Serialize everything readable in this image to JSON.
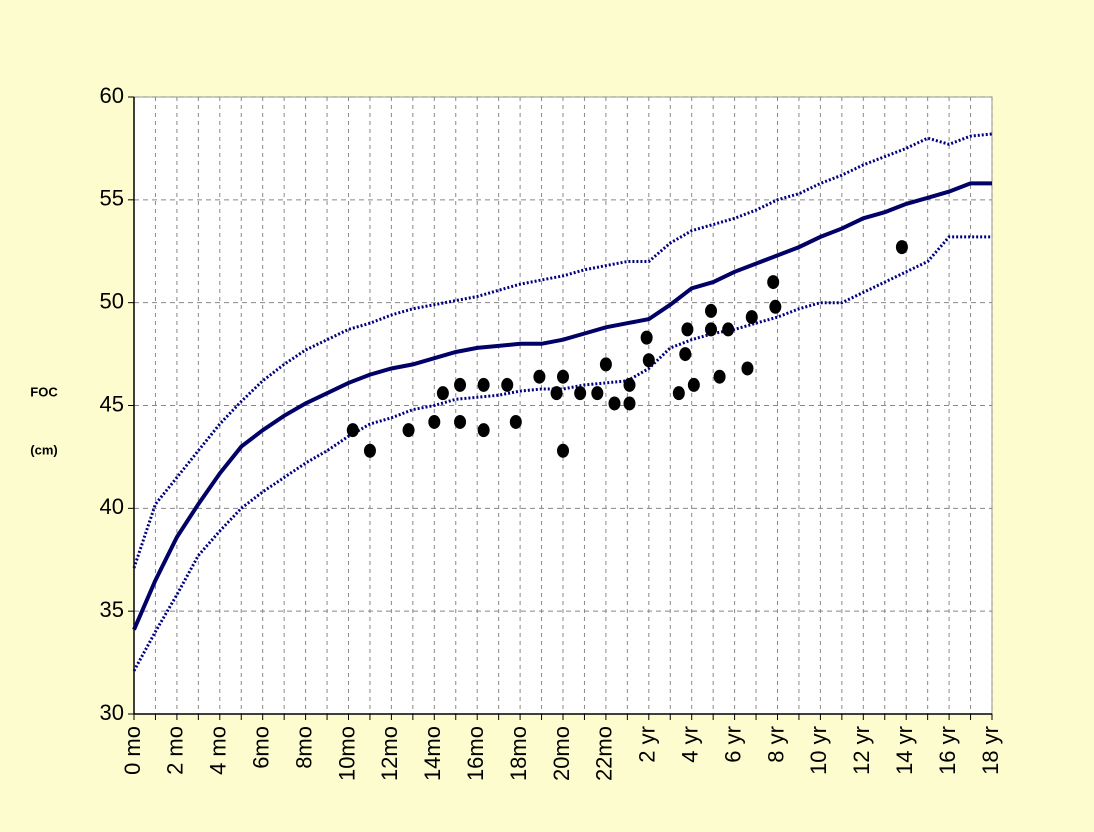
{
  "chart_data": {
    "type": "line",
    "y_label_lines": [
      "FOC",
      "(cm)"
    ],
    "xlim": [
      0,
      40
    ],
    "xticks": [
      {
        "value": 0,
        "label": "0 mo"
      },
      {
        "value": 2,
        "label": "2 mo"
      },
      {
        "value": 4,
        "label": "4 mo"
      },
      {
        "value": 6,
        "label": "6mo"
      },
      {
        "value": 8,
        "label": "8mo"
      },
      {
        "value": 10,
        "label": "10mo"
      },
      {
        "value": 12,
        "label": "12mo"
      },
      {
        "value": 14,
        "label": "14mo"
      },
      {
        "value": 16,
        "label": "16mo"
      },
      {
        "value": 18,
        "label": "18mo"
      },
      {
        "value": 20,
        "label": "20mo"
      },
      {
        "value": 22,
        "label": "22mo"
      },
      {
        "value": 24,
        "label": "2 yr"
      },
      {
        "value": 26,
        "label": "4 yr"
      },
      {
        "value": 28,
        "label": "6 yr"
      },
      {
        "value": 30,
        "label": "8 yr"
      },
      {
        "value": 32,
        "label": "10 yr"
      },
      {
        "value": 34,
        "label": "12 yr"
      },
      {
        "value": 36,
        "label": "14 yr"
      },
      {
        "value": 38,
        "label": "16 yr"
      },
      {
        "value": 40,
        "label": "18 yr"
      }
    ],
    "xminorticks": [
      1,
      3,
      5,
      7,
      9,
      11,
      13,
      15,
      17,
      19,
      21,
      23,
      25,
      27,
      29,
      31,
      33,
      35,
      37,
      39
    ],
    "ylim": [
      30,
      60
    ],
    "yticks": [
      30,
      35,
      40,
      45,
      50,
      55,
      60
    ],
    "grid": true,
    "series": [
      {
        "color": "#000080",
        "style": "dotted",
        "x": [
          0,
          1,
          2,
          3,
          4,
          5,
          6,
          7,
          8,
          9,
          10,
          11,
          12,
          13,
          14,
          15,
          16,
          17,
          18,
          19,
          20,
          21,
          22,
          23,
          24,
          25,
          26,
          27,
          28,
          29,
          30,
          31,
          32,
          33,
          34,
          35,
          36,
          37,
          38,
          39,
          40
        ],
        "values": [
          37.1,
          40.2,
          41.5,
          42.8,
          44.1,
          45.2,
          46.2,
          47.0,
          47.7,
          48.2,
          48.7,
          49.0,
          49.4,
          49.7,
          49.9,
          50.1,
          50.3,
          50.6,
          50.9,
          51.1,
          51.3,
          51.6,
          51.8,
          52.0,
          52.0,
          52.9,
          53.5,
          53.8,
          54.1,
          54.5,
          55.0,
          55.3,
          55.8,
          56.2,
          56.7,
          57.1,
          57.5,
          58.0,
          57.7,
          58.1,
          58.2
        ]
      },
      {
        "color": "#000066",
        "style": "solid",
        "x": [
          0,
          1,
          2,
          3,
          4,
          5,
          6,
          7,
          8,
          9,
          10,
          11,
          12,
          13,
          14,
          15,
          16,
          17,
          18,
          19,
          20,
          21,
          22,
          23,
          24,
          25,
          26,
          27,
          28,
          29,
          30,
          31,
          32,
          33,
          34,
          35,
          36,
          37,
          38,
          39,
          40
        ],
        "values": [
          34.1,
          36.5,
          38.6,
          40.2,
          41.7,
          43.0,
          43.8,
          44.5,
          45.1,
          45.6,
          46.1,
          46.5,
          46.8,
          47.0,
          47.3,
          47.6,
          47.8,
          47.9,
          48.0,
          48.0,
          48.2,
          48.5,
          48.8,
          49.0,
          49.2,
          49.9,
          50.7,
          51.0,
          51.5,
          51.9,
          52.3,
          52.7,
          53.2,
          53.6,
          54.1,
          54.4,
          54.8,
          55.1,
          55.4,
          55.8,
          55.8
        ]
      },
      {
        "color": "#000080",
        "style": "dotted",
        "x": [
          0,
          1,
          2,
          3,
          4,
          5,
          6,
          7,
          8,
          9,
          10,
          11,
          12,
          13,
          14,
          15,
          16,
          17,
          18,
          19,
          20,
          21,
          22,
          23,
          24,
          25,
          26,
          27,
          28,
          29,
          30,
          31,
          32,
          33,
          34,
          35,
          36,
          37,
          38,
          39,
          40
        ],
        "values": [
          32.1,
          34.0,
          35.8,
          37.7,
          38.9,
          40.0,
          40.8,
          41.5,
          42.2,
          42.8,
          43.5,
          44.1,
          44.4,
          44.8,
          45.0,
          45.3,
          45.4,
          45.5,
          45.7,
          45.8,
          45.8,
          46.0,
          46.1,
          46.2,
          46.8,
          47.8,
          48.2,
          48.5,
          48.7,
          49.0,
          49.3,
          49.7,
          50.0,
          50.0,
          50.5,
          51.0,
          51.5,
          52.0,
          53.2,
          53.2,
          53.2
        ]
      },
      {
        "color": "#000000",
        "style": "scatter",
        "x": [
          10.2,
          11.0,
          12.8,
          14.0,
          14.4,
          15.2,
          15.2,
          16.3,
          16.3,
          17.4,
          17.8,
          18.9,
          19.7,
          20.0,
          20.0,
          20.8,
          21.6,
          22.0,
          22.4,
          23.1,
          23.1,
          23.9,
          24.0,
          25.4,
          25.8,
          25.7,
          26.1,
          26.9,
          26.9,
          27.3,
          27.7,
          28.6,
          28.8,
          29.8,
          29.9,
          35.8
        ],
        "values": [
          43.8,
          42.8,
          43.8,
          44.2,
          45.6,
          46.0,
          44.2,
          46.0,
          43.8,
          46.0,
          44.2,
          46.4,
          45.6,
          46.4,
          42.8,
          45.6,
          45.6,
          47.0,
          45.1,
          46.0,
          45.1,
          48.3,
          47.2,
          45.6,
          48.7,
          47.5,
          46.0,
          49.6,
          48.7,
          46.4,
          48.7,
          46.8,
          49.3,
          51.0,
          49.8,
          52.7
        ]
      }
    ]
  }
}
